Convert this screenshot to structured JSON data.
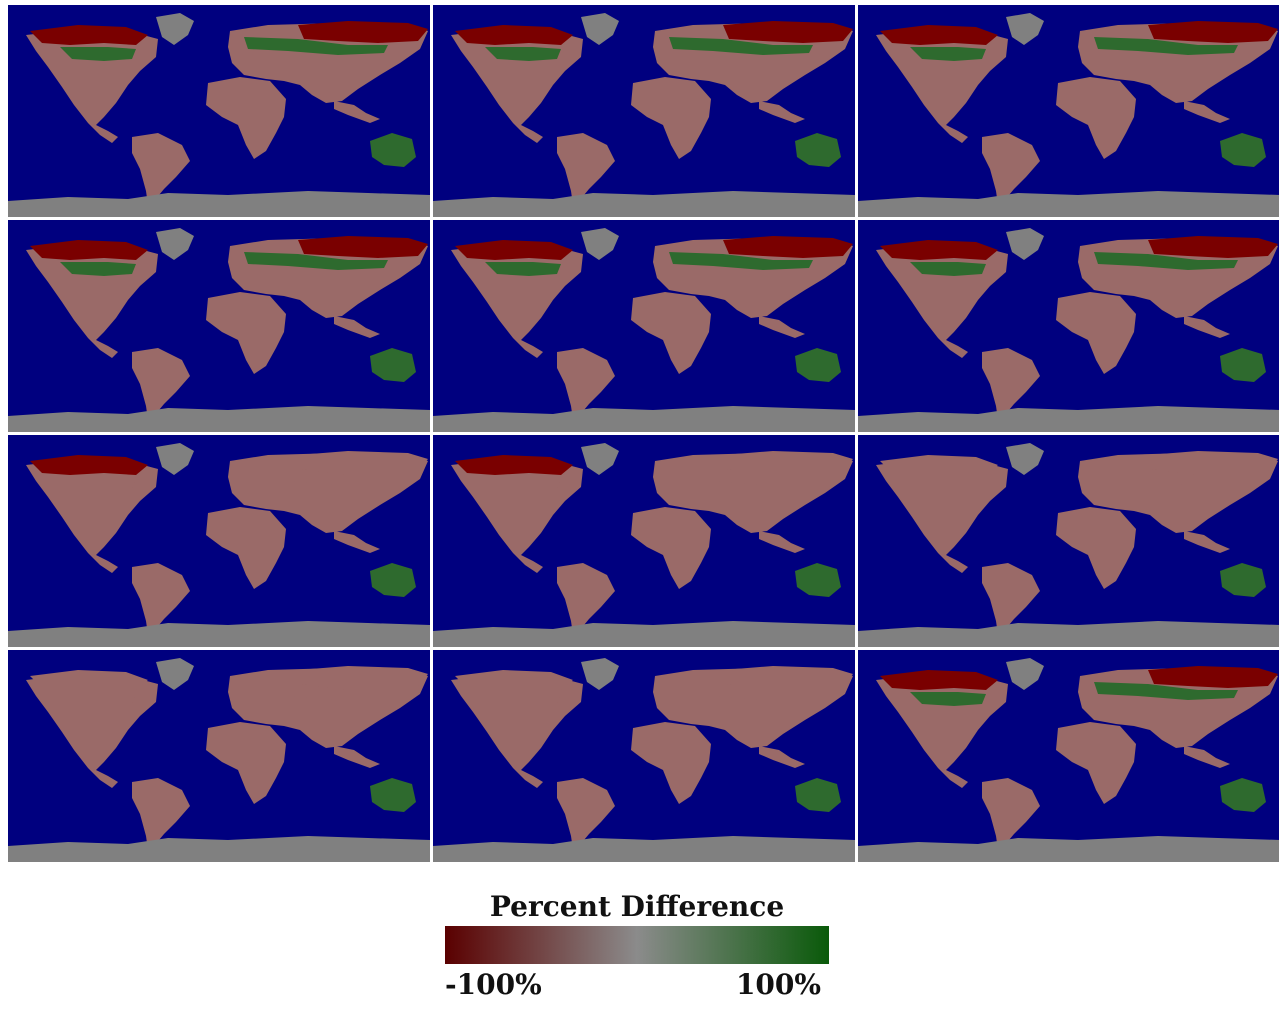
{
  "legend": {
    "title": "Percent Difference",
    "min_label": "-100%",
    "max_label": "100%",
    "min_value": -100,
    "max_value": 100,
    "colorscale": [
      "#5a0000",
      "#8b8b8b",
      "#0a5a0a"
    ]
  },
  "colors": {
    "ocean": "#00007f",
    "ice": "#808080",
    "land": "#9a6a68",
    "decline": "#7a0000",
    "increase": "#2e6a2e"
  },
  "maps": [
    {
      "row": 1,
      "col": 1,
      "greenland": "ice",
      "north_canada": "decline",
      "siberia": "decline",
      "boreal": "increase",
      "australia": "increase"
    },
    {
      "row": 1,
      "col": 2,
      "greenland": "ice",
      "north_canada": "decline",
      "siberia": "decline",
      "boreal": "increase",
      "australia": "increase"
    },
    {
      "row": 1,
      "col": 3,
      "greenland": "ice",
      "north_canada": "decline",
      "siberia": "decline",
      "boreal": "increase",
      "australia": "increase"
    },
    {
      "row": 2,
      "col": 1,
      "greenland": "ice",
      "north_canada": "decline",
      "siberia": "decline",
      "boreal": "increase",
      "australia": "increase"
    },
    {
      "row": 2,
      "col": 2,
      "greenland": "ice",
      "north_canada": "decline",
      "siberia": "decline",
      "boreal": "increase",
      "australia": "increase"
    },
    {
      "row": 2,
      "col": 3,
      "greenland": "ice",
      "north_canada": "decline",
      "siberia": "decline",
      "boreal": "increase",
      "australia": "increase"
    },
    {
      "row": 3,
      "col": 1,
      "greenland": "ice",
      "north_canada": "decline",
      "siberia": "land",
      "boreal": "land",
      "australia": "increase"
    },
    {
      "row": 3,
      "col": 2,
      "greenland": "ice",
      "north_canada": "decline",
      "siberia": "land",
      "boreal": "land",
      "australia": "increase"
    },
    {
      "row": 3,
      "col": 3,
      "greenland": "ice",
      "north_canada": "land",
      "siberia": "land",
      "boreal": "land",
      "australia": "increase"
    },
    {
      "row": 4,
      "col": 1,
      "greenland": "ice",
      "north_canada": "land",
      "siberia": "land",
      "boreal": "land",
      "australia": "increase"
    },
    {
      "row": 4,
      "col": 2,
      "greenland": "ice",
      "north_canada": "land",
      "siberia": "land",
      "boreal": "land",
      "australia": "increase"
    },
    {
      "row": 4,
      "col": 3,
      "greenland": "ice",
      "north_canada": "decline",
      "siberia": "decline",
      "boreal": "increase",
      "australia": "increase"
    }
  ]
}
